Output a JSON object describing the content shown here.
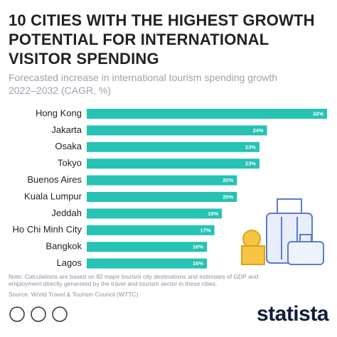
{
  "chart_data": {
    "type": "bar",
    "orientation": "horizontal",
    "title": "10 CITIES WITH THE HIGHEST GROWTH POTENTIAL FOR INTERNATIONAL VISITOR SPENDING",
    "subtitle": "Forecasted increase in international tourism spending growth 2022–2032 (CAGR, %)",
    "categories": [
      "Hong Kong",
      "Jakarta",
      "Osaka",
      "Tokyo",
      "Buenos Aires",
      "Kuala Lumpur",
      "Jeddah",
      "Ho Chi Minh City",
      "Bangkok",
      "Lagos"
    ],
    "values": [
      32,
      24,
      23,
      23,
      20,
      20,
      18,
      17,
      16,
      16
    ],
    "value_labels": [
      "32%",
      "24%",
      "23%",
      "23%",
      "20%",
      "20%",
      "18%",
      "17%",
      "16%",
      "16%"
    ],
    "color": "#26c2b4",
    "note": "Note: Calculations are based on 82 major tourism city destinations and estimates of GDP and employment directly generated by the travel and tourism sector in these cities.",
    "source": "Source: World Travel & Tourism Council (WTTC)",
    "logo": "statista"
  }
}
